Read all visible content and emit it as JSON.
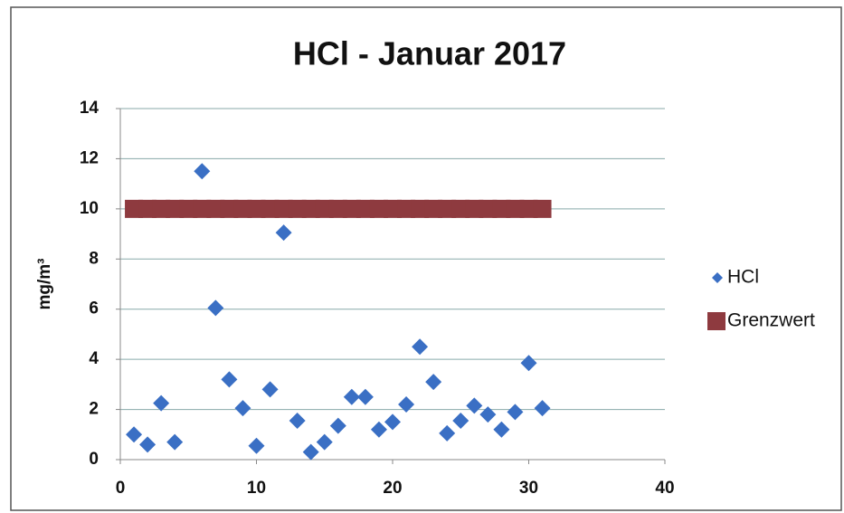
{
  "chart_data": {
    "type": "scatter",
    "title": "HCl -  Januar 2017",
    "ylabel": "mg/m³",
    "xlim": [
      0,
      40
    ],
    "xticks": [
      0,
      10,
      20,
      30,
      40
    ],
    "ylim": [
      0,
      14
    ],
    "yticks": [
      0,
      2,
      4,
      6,
      8,
      10,
      12,
      14
    ],
    "grid": true,
    "legend": "right",
    "series": [
      {
        "name": "HCl",
        "color": "#3a6fc4",
        "marker": "diamond",
        "x": [
          1,
          2,
          3,
          4,
          6,
          7,
          8,
          9,
          10,
          11,
          12,
          13,
          14,
          15,
          16,
          17,
          18,
          19,
          20,
          21,
          22,
          23,
          24,
          25,
          26,
          27,
          28,
          29,
          30,
          31
        ],
        "values": [
          1.0,
          0.6,
          2.25,
          0.7,
          11.5,
          6.05,
          3.2,
          2.05,
          0.55,
          2.8,
          9.05,
          1.55,
          0.3,
          0.7,
          1.35,
          2.5,
          2.5,
          1.2,
          1.5,
          2.2,
          4.5,
          3.1,
          1.05,
          1.55,
          2.15,
          1.8,
          1.2,
          1.9,
          3.85,
          2.05
        ]
      },
      {
        "name": "Grenzwert",
        "color": "#8e3a3f",
        "marker": "square",
        "x": [
          1,
          2,
          3,
          4,
          5,
          6,
          7,
          8,
          9,
          10,
          11,
          12,
          13,
          14,
          15,
          16,
          17,
          18,
          19,
          20,
          21,
          22,
          23,
          24,
          25,
          26,
          27,
          28,
          29,
          30,
          31
        ],
        "values": [
          10,
          10,
          10,
          10,
          10,
          10,
          10,
          10,
          10,
          10,
          10,
          10,
          10,
          10,
          10,
          10,
          10,
          10,
          10,
          10,
          10,
          10,
          10,
          10,
          10,
          10,
          10,
          10,
          10,
          10,
          10
        ]
      }
    ]
  }
}
